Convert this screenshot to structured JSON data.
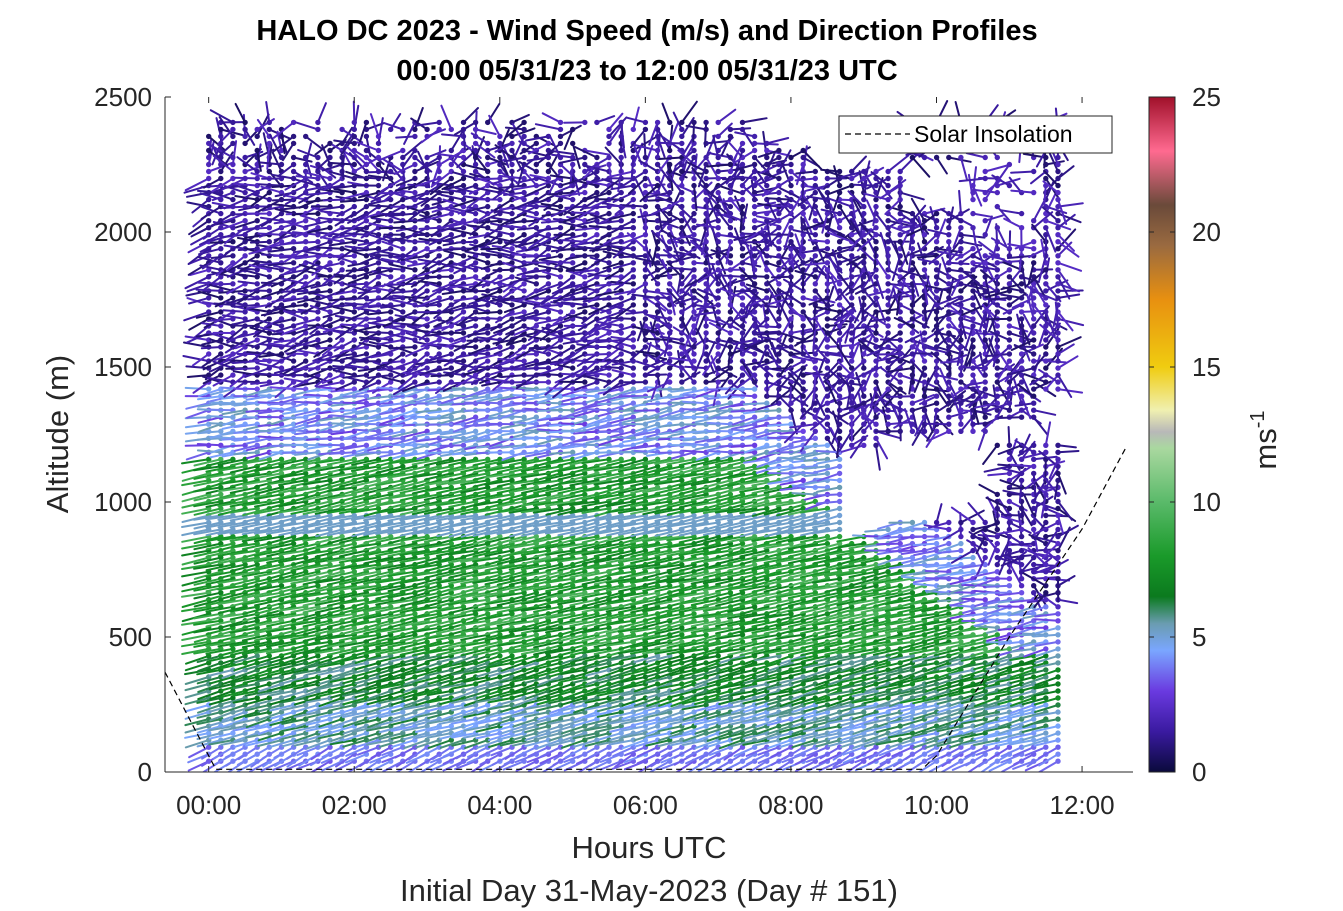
{
  "chart_data": {
    "type": "wind-barb-profile",
    "title": "HALO DC 2023 - Wind Speed (m/s) and Direction Profiles",
    "subtitle": "00:00 05/31/23 to 12:00 05/31/23  UTC",
    "xlabel": "Hours UTC",
    "xlabel2": "Initial Day 31-May-2023 (Day # 151)",
    "ylabel": "Altitude (m)",
    "x_ticks": [
      "00:00",
      "02:00",
      "04:00",
      "06:00",
      "08:00",
      "10:00",
      "12:00"
    ],
    "x_tick_hours": [
      0,
      2,
      4,
      6,
      8,
      10,
      12
    ],
    "xlim_hours": [
      -0.6,
      12.7
    ],
    "y_ticks": [
      "0",
      "500",
      "1000",
      "1500",
      "2000",
      "2500"
    ],
    "y_tick_values": [
      0,
      500,
      1000,
      1500,
      2000,
      2500
    ],
    "ylim": [
      0,
      2500
    ],
    "colorbar": {
      "label": "ms",
      "label_exponent": "-1",
      "ticks": [
        "0",
        "5",
        "10",
        "15",
        "20",
        "25"
      ],
      "tick_values": [
        0,
        5,
        10,
        15,
        20,
        25
      ],
      "range": [
        0,
        25
      ],
      "colormap_stops": [
        {
          "v": 0,
          "c": "#0a0a3c"
        },
        {
          "v": 1.5,
          "c": "#3a1aa0"
        },
        {
          "v": 3,
          "c": "#6a3ae0"
        },
        {
          "v": 4.5,
          "c": "#7aa6ff"
        },
        {
          "v": 5.5,
          "c": "#6a9cb0"
        },
        {
          "v": 6.5,
          "c": "#0b7a1e"
        },
        {
          "v": 8,
          "c": "#1a9a2a"
        },
        {
          "v": 10,
          "c": "#5aba6a"
        },
        {
          "v": 12,
          "c": "#aad8a0"
        },
        {
          "v": 12.6,
          "c": "#b8b8b8"
        },
        {
          "v": 13.4,
          "c": "#f0f0b0"
        },
        {
          "v": 15,
          "c": "#f0cc10"
        },
        {
          "v": 17.5,
          "c": "#e89010"
        },
        {
          "v": 19.5,
          "c": "#9a6a40"
        },
        {
          "v": 21,
          "c": "#6a4a3a"
        },
        {
          "v": 23,
          "c": "#ff6a90"
        },
        {
          "v": 25,
          "c": "#a0102a"
        }
      ]
    },
    "legend": {
      "entries": [
        "Solar Insolation"
      ],
      "placement": "top-right",
      "line_style": "dashed",
      "color": "#000000"
    },
    "solar_insolation": {
      "x_hours": [
        -0.6,
        0.0,
        0.1,
        9.8,
        10.0,
        11.0,
        12.0,
        12.6
      ],
      "alt_m": [
        370,
        60,
        10,
        10,
        60,
        500,
        900,
        1200
      ]
    },
    "wind_field": {
      "time_range_hours": [
        0,
        11.8
      ],
      "time_step_hours": 0.1667,
      "alt_range_m": [
        40,
        2420
      ],
      "alt_step_m": 26,
      "encoding": "each point is a dot at (time, altitude) with a tail pointing toward the upwind direction; color = wind speed (m/s)",
      "layers": [
        {
          "alt_m": [
            0,
            100
          ],
          "speed_ms": 3.5,
          "tail_direction": "lower-left"
        },
        {
          "alt_m": [
            100,
            450
          ],
          "speed_ms": 4.5,
          "tail_direction": "left"
        },
        {
          "alt_m": [
            450,
            950
          ],
          "speed_ms": 7.5,
          "tail_direction": "left, slightly down"
        },
        {
          "alt_m": [
            950,
            1180
          ],
          "speed_ms": 8.5,
          "tail_direction": "left, slightly down"
        },
        {
          "alt_m": [
            1180,
            1400
          ],
          "speed_ms": 3.5,
          "tail_direction": "left"
        },
        {
          "alt_m": [
            1400,
            2450
          ],
          "speed_ms": 1.5,
          "tail_direction": "variable"
        }
      ]
    }
  }
}
